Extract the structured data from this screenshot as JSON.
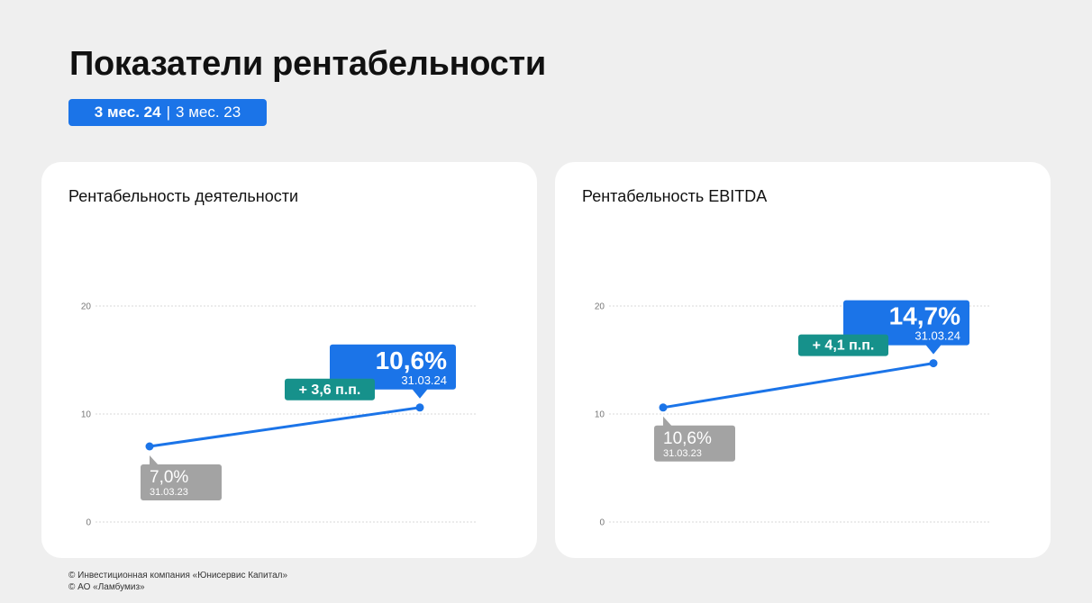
{
  "page": {
    "title": "Показатели рентабельности",
    "toggle": {
      "active": "3 мес. 24",
      "separator": "|",
      "inactive": "3 мес. 23"
    }
  },
  "colors": {
    "accent": "#1b74e8",
    "delta": "#16918b",
    "prior": "#a3a3a3",
    "grid": "#d8d8d8"
  },
  "chart_data": [
    {
      "type": "line",
      "title": "Рентабельность деятельности",
      "ylim": [
        0,
        20
      ],
      "yticks": [
        0,
        10,
        20
      ],
      "ytick_labels": [
        "0",
        "10",
        "20"
      ],
      "grid": true,
      "series": [
        {
          "x": [
            "31.03.23",
            "31.03.24"
          ],
          "values": [
            7.0,
            10.6
          ]
        }
      ],
      "annotations": {
        "start": {
          "value": "7,0%",
          "date": "31.03.23"
        },
        "end": {
          "value": "10,6%",
          "date": "31.03.24"
        },
        "delta": "+ 3,6 п.п."
      }
    },
    {
      "type": "line",
      "title": "Рентабельность EBITDA",
      "ylim": [
        0,
        20
      ],
      "yticks": [
        0,
        10,
        20
      ],
      "ytick_labels": [
        "0",
        "10",
        "20"
      ],
      "grid": true,
      "series": [
        {
          "x": [
            "31.03.23",
            "31.03.24"
          ],
          "values": [
            10.6,
            14.7
          ]
        }
      ],
      "annotations": {
        "start": {
          "value": "10,6%",
          "date": "31.03.23"
        },
        "end": {
          "value": "14,7%",
          "date": "31.03.24"
        },
        "delta": "+ 4,1 п.п."
      }
    }
  ],
  "footer": {
    "line1": "© Инвестиционная компания «Юнисервис Капитал»",
    "line2": "© АО «Ламбумиз»"
  }
}
